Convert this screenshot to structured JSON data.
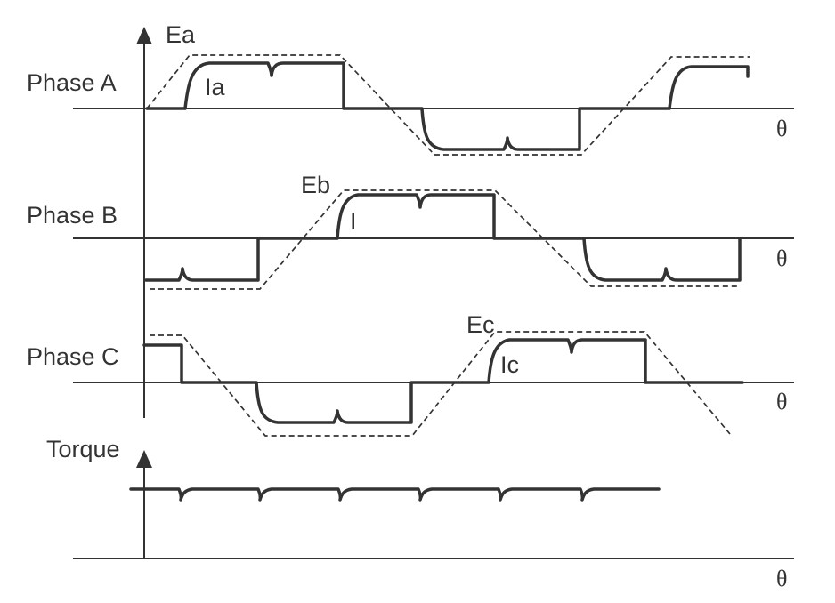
{
  "labels": {
    "ea": "Ea",
    "ia": "Ia",
    "eb": "Eb",
    "ib": "I",
    "ec": "Ec",
    "ic": "Ic",
    "phase_a": "Phase A",
    "phase_b": "Phase B",
    "phase_c": "Phase C",
    "torque": "Torque",
    "theta": "θ"
  },
  "colors": {
    "ink": "#333333",
    "background": "#ffffff"
  }
}
